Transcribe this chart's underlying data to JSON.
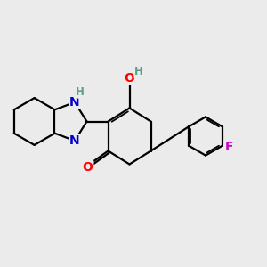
{
  "bg_color": "#ebebeb",
  "bond_color": "#000000",
  "bond_width": 1.6,
  "atom_colors": {
    "O": "#ff0000",
    "N": "#0000cc",
    "F": "#cc00cc",
    "H_teal": "#5a9e90",
    "C": "#000000"
  },
  "font_size_atom": 10,
  "font_size_h": 8.5
}
